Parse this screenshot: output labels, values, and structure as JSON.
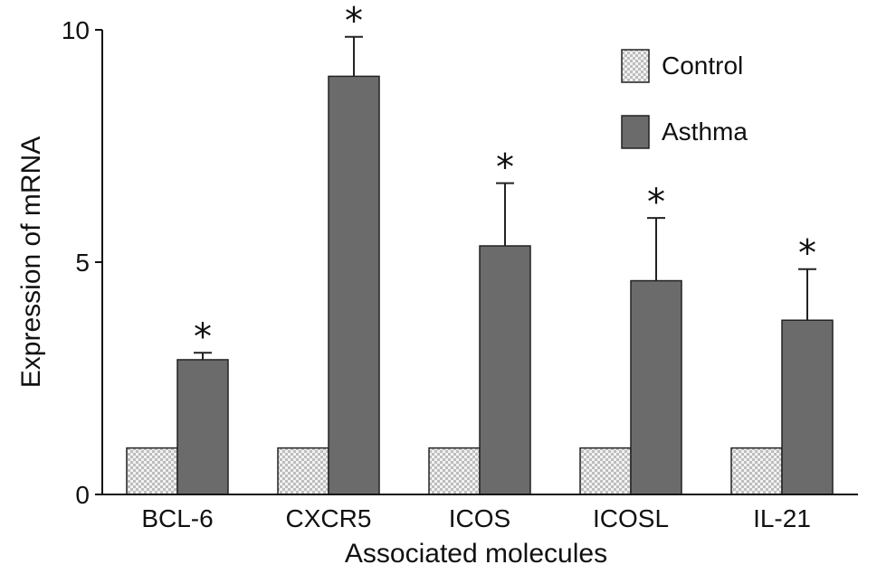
{
  "chart_data": {
    "type": "bar",
    "title": "",
    "xlabel": "Associated molecules",
    "ylabel": "Expression of mRNA",
    "ylim": [
      0,
      10
    ],
    "yticks": [
      0,
      5,
      10
    ],
    "grid": false,
    "legend_position": "top-right",
    "categories": [
      "BCL-6",
      "CXCR5",
      "ICOS",
      "ICOSL",
      "IL-21"
    ],
    "series": [
      {
        "name": "Control",
        "values": [
          1.0,
          1.0,
          1.0,
          1.0,
          1.0
        ],
        "pattern": "checkered",
        "color": "#e8e8e8"
      },
      {
        "name": "Asthma",
        "values": [
          2.9,
          9.0,
          5.35,
          4.6,
          3.75
        ],
        "errors": [
          0.15,
          0.85,
          1.35,
          1.35,
          1.1
        ],
        "significance": [
          "*",
          "*",
          "*",
          "*",
          "*"
        ],
        "color": "#6b6b6b"
      }
    ]
  }
}
